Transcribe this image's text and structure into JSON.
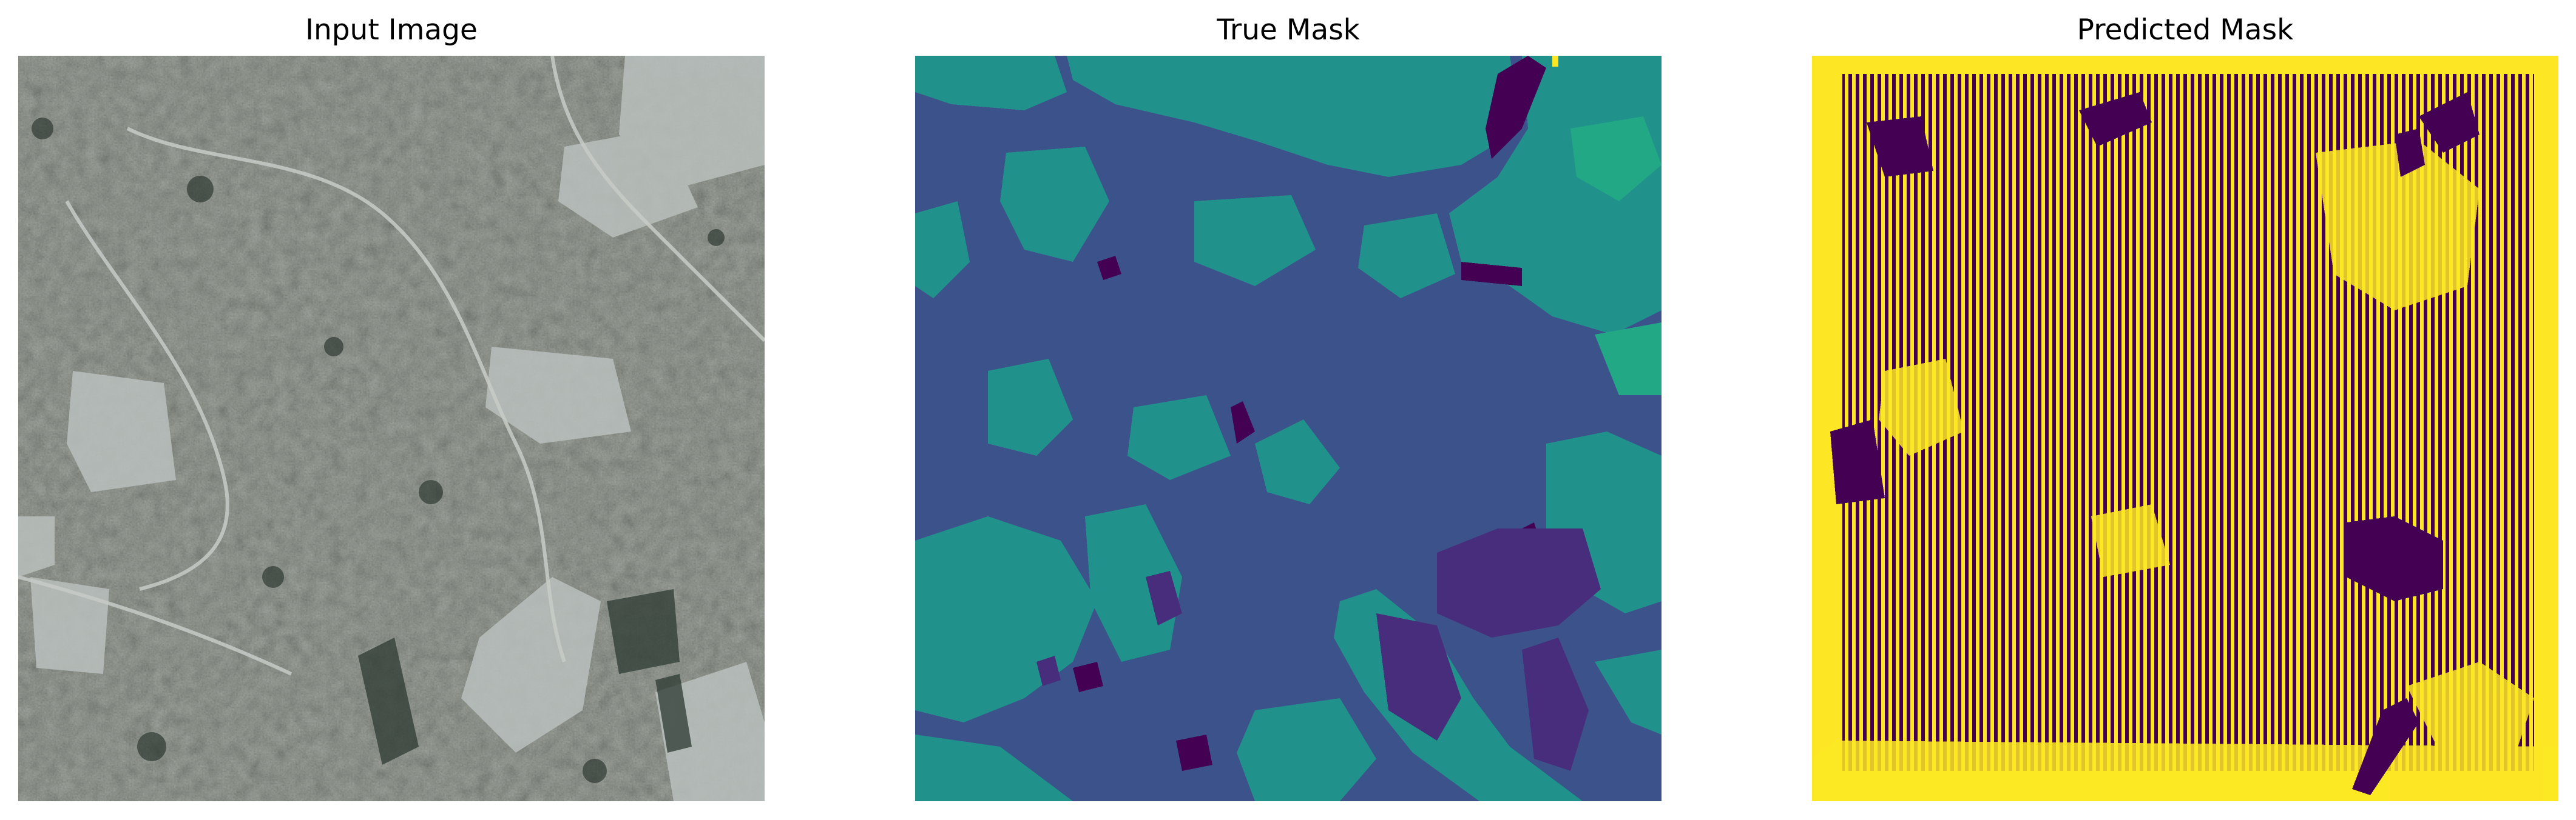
{
  "figure": {
    "panels": [
      {
        "title": "Input Image"
      },
      {
        "title": "True Mask"
      },
      {
        "title": "Predicted Mask"
      }
    ]
  },
  "colors": {
    "background": "#ffffff",
    "mask_class_0": "#440154",
    "mask_class_1": "#3b528b",
    "mask_class_2": "#21918c",
    "mask_class_3": "#22a884",
    "mask_class_4": "#fde725",
    "satellite_base": "#8c928a"
  }
}
